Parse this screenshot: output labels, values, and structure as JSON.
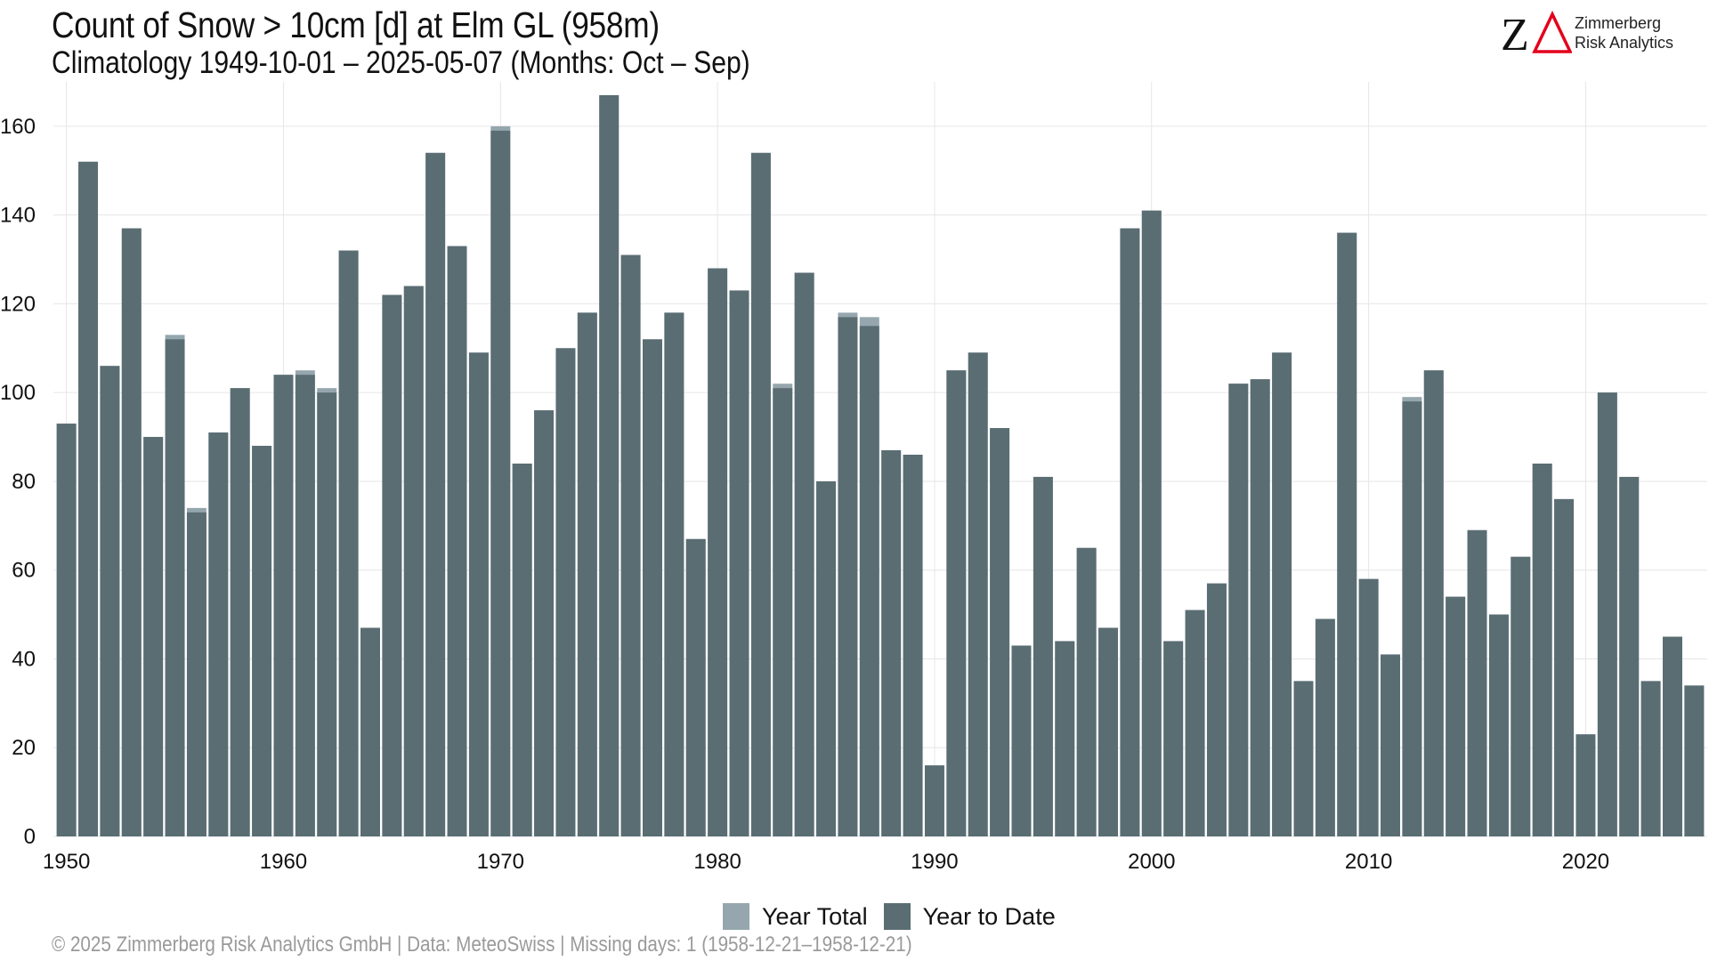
{
  "title": "Count of Snow > 10cm [d] at Elm  GL (958m)",
  "subtitle": "Climatology 1949-10-01 – 2025-05-07 (Months: Oct – Sep)",
  "logo": {
    "mark_letter": "Z",
    "mark_color": "#e3001b",
    "line1": "Zimmerberg",
    "line2": "Risk Analytics"
  },
  "legend": {
    "total_label": "Year Total",
    "ytd_label": "Year to Date"
  },
  "footer": "©  2025 Zimmerberg Risk Analytics GmbH | Data: MeteoSwiss | Missing days: 1 (1958-12-21–1958-12-21)",
  "colors": {
    "total": "#95a6ae",
    "ytd": "#5a6d73",
    "grid": "#e6e6e6"
  },
  "chart_data": {
    "type": "bar",
    "xlim": [
      1949.4,
      2025.6
    ],
    "ylim": [
      0,
      170
    ],
    "x_ticks": [
      1950,
      1960,
      1970,
      1980,
      1990,
      2000,
      2010,
      2020
    ],
    "y_ticks": [
      0,
      20,
      40,
      60,
      80,
      100,
      120,
      140,
      160
    ],
    "legend_position": "bottom",
    "grid": true,
    "series": [
      {
        "name": "Year Total",
        "x": [
          1950,
          1951,
          1952,
          1953,
          1954,
          1955,
          1956,
          1957,
          1958,
          1959,
          1960,
          1961,
          1962,
          1963,
          1964,
          1965,
          1966,
          1967,
          1968,
          1969,
          1970,
          1971,
          1972,
          1973,
          1974,
          1975,
          1976,
          1977,
          1978,
          1979,
          1980,
          1981,
          1982,
          1983,
          1984,
          1985,
          1986,
          1987,
          1988,
          1989,
          1990,
          1991,
          1992,
          1993,
          1994,
          1995,
          1996,
          1997,
          1998,
          1999,
          2000,
          2001,
          2002,
          2003,
          2004,
          2005,
          2006,
          2007,
          2008,
          2009,
          2010,
          2011,
          2012,
          2013,
          2014,
          2015,
          2016,
          2017,
          2018,
          2019,
          2020,
          2021,
          2022,
          2023,
          2024,
          2025
        ],
        "values": [
          93,
          152,
          106,
          137,
          90,
          113,
          74,
          91,
          101,
          88,
          104,
          105,
          101,
          132,
          47,
          122,
          124,
          154,
          133,
          109,
          160,
          84,
          96,
          110,
          118,
          167,
          131,
          112,
          118,
          67,
          128,
          123,
          154,
          102,
          127,
          80,
          118,
          117,
          87,
          86,
          16,
          105,
          109,
          92,
          43,
          81,
          44,
          65,
          47,
          137,
          141,
          44,
          51,
          57,
          102,
          103,
          109,
          35,
          49,
          136,
          58,
          41,
          99,
          105,
          54,
          69,
          50,
          63,
          84,
          76,
          23,
          100,
          81,
          35,
          45,
          34
        ]
      },
      {
        "name": "Year to Date",
        "x": [
          1950,
          1951,
          1952,
          1953,
          1954,
          1955,
          1956,
          1957,
          1958,
          1959,
          1960,
          1961,
          1962,
          1963,
          1964,
          1965,
          1966,
          1967,
          1968,
          1969,
          1970,
          1971,
          1972,
          1973,
          1974,
          1975,
          1976,
          1977,
          1978,
          1979,
          1980,
          1981,
          1982,
          1983,
          1984,
          1985,
          1986,
          1987,
          1988,
          1989,
          1990,
          1991,
          1992,
          1993,
          1994,
          1995,
          1996,
          1997,
          1998,
          1999,
          2000,
          2001,
          2002,
          2003,
          2004,
          2005,
          2006,
          2007,
          2008,
          2009,
          2010,
          2011,
          2012,
          2013,
          2014,
          2015,
          2016,
          2017,
          2018,
          2019,
          2020,
          2021,
          2022,
          2023,
          2024,
          2025
        ],
        "values": [
          93,
          152,
          106,
          137,
          90,
          112,
          73,
          91,
          101,
          88,
          104,
          104,
          100,
          132,
          47,
          122,
          124,
          154,
          133,
          109,
          159,
          84,
          96,
          110,
          118,
          167,
          131,
          112,
          118,
          67,
          128,
          123,
          154,
          101,
          127,
          80,
          117,
          115,
          87,
          86,
          16,
          105,
          109,
          92,
          43,
          81,
          44,
          65,
          47,
          137,
          141,
          44,
          51,
          57,
          102,
          103,
          109,
          35,
          49,
          136,
          58,
          41,
          98,
          105,
          54,
          69,
          50,
          63,
          84,
          76,
          23,
          100,
          81,
          35,
          45,
          34
        ]
      }
    ]
  }
}
